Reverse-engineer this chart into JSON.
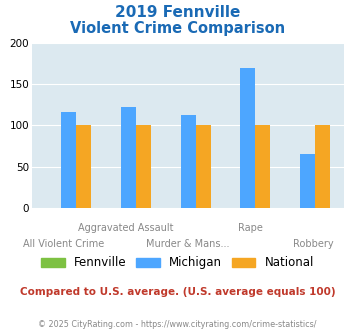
{
  "title_line1": "2019 Fennville",
  "title_line2": "Violent Crime Comparison",
  "categories_top": [
    "",
    "Aggravated Assault",
    "",
    "Rape",
    ""
  ],
  "categories_bottom": [
    "All Violent Crime",
    "",
    "Murder & Mans...",
    "",
    "Robbery"
  ],
  "series": {
    "Fennville": [
      0,
      0,
      0,
      0,
      0
    ],
    "Michigan": [
      116,
      122,
      112,
      170,
      65
    ],
    "National": [
      100,
      100,
      100,
      100,
      100
    ]
  },
  "colors": {
    "Fennville": "#7dc142",
    "Michigan": "#4da6ff",
    "National": "#f5a623"
  },
  "ylim": [
    0,
    200
  ],
  "yticks": [
    0,
    50,
    100,
    150,
    200
  ],
  "plot_bg": "#dce9f0",
  "title_color": "#1a6ab5",
  "footer_text": "Compared to U.S. average. (U.S. average equals 100)",
  "footer_color": "#c0392b",
  "copyright_text": "© 2025 CityRating.com - https://www.cityrating.com/crime-statistics/",
  "copyright_color": "#888888"
}
